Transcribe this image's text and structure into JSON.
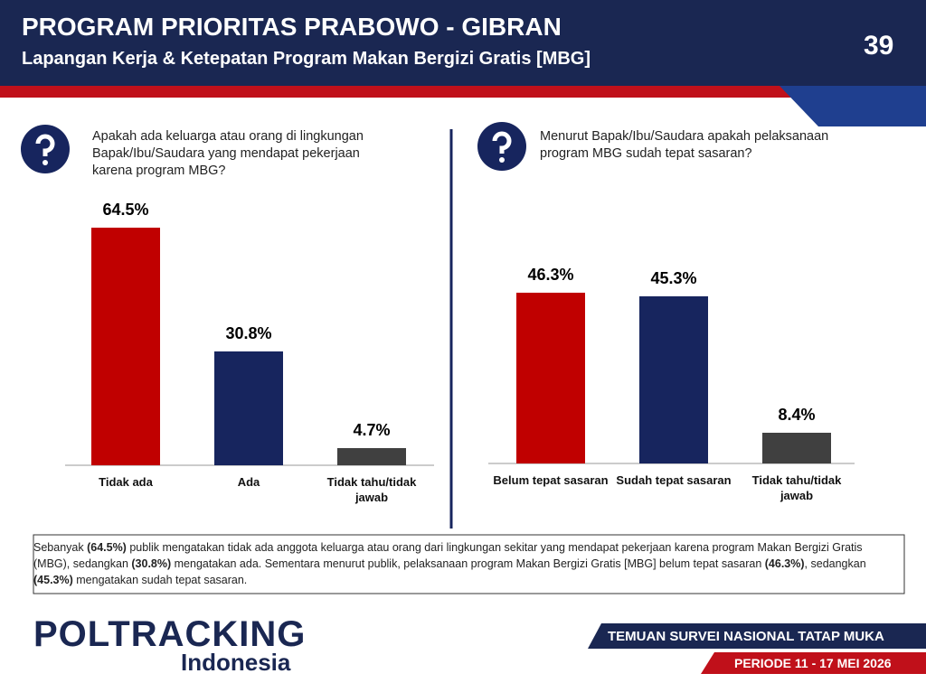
{
  "header": {
    "title": "PROGRAM PRIORITAS PRABOWO - GIBRAN",
    "subtitle": "Lapangan Kerja & Ketepatan Program Makan Bergizi Gratis [MBG]",
    "page_number": "39"
  },
  "chart_data": [
    {
      "type": "bar",
      "title": "Apakah ada keluarga atau orang di lingkungan Bapak/Ibu/Saudara yang mendapat pekerjaan karena program MBG?",
      "categories": [
        "Tidak ada",
        "Ada",
        "Tidak tahu/tidak jawab"
      ],
      "values": [
        64.5,
        30.8,
        4.7
      ],
      "value_labels": [
        "64.5%",
        "30.8%",
        "4.7%"
      ],
      "colors": [
        "#c00000",
        "#17255e",
        "#404040"
      ]
    },
    {
      "type": "bar",
      "title": "Menurut Bapak/Ibu/Saudara apakah pelaksanaan program MBG sudah tepat sasaran?",
      "categories": [
        "Belum tepat sasaran",
        "Sudah tepat sasaran",
        "Tidak tahu/tidak jawab"
      ],
      "values": [
        46.3,
        45.3,
        8.4
      ],
      "value_labels": [
        "46.3%",
        "45.3%",
        "8.4%"
      ],
      "colors": [
        "#c00000",
        "#17255e",
        "#404040"
      ]
    }
  ],
  "summary": [
    {
      "text": "Sebanyak "
    },
    {
      "text": "(64.5%)",
      "bold": true
    },
    {
      "text": " publik mengatakan tidak ada anggota keluarga atau orang dari lingkungan sekitar yang mendapat pekerjaan karena program Makan Bergizi Gratis (MBG), sedangkan "
    },
    {
      "text": "(30.8%)",
      "bold": true
    },
    {
      "text": " mengatakan ada. Sementara menurut publik, pelaksanaan program Makan Bergizi Gratis [MBG] belum tepat sasaran "
    },
    {
      "text": "(46.3%)",
      "bold": true
    },
    {
      "text": ", sedangkan "
    },
    {
      "text": "(45.3%)",
      "bold": true
    },
    {
      "text": " mengatakan sudah tepat sasaran."
    }
  ],
  "footer": {
    "logo_main": "POLTRACKING",
    "logo_sub": "Indonesia",
    "survey": "TEMUAN SURVEI NASIONAL TATAP MUKA",
    "period": "PERIODE 11 - 17 MEI 2026"
  }
}
